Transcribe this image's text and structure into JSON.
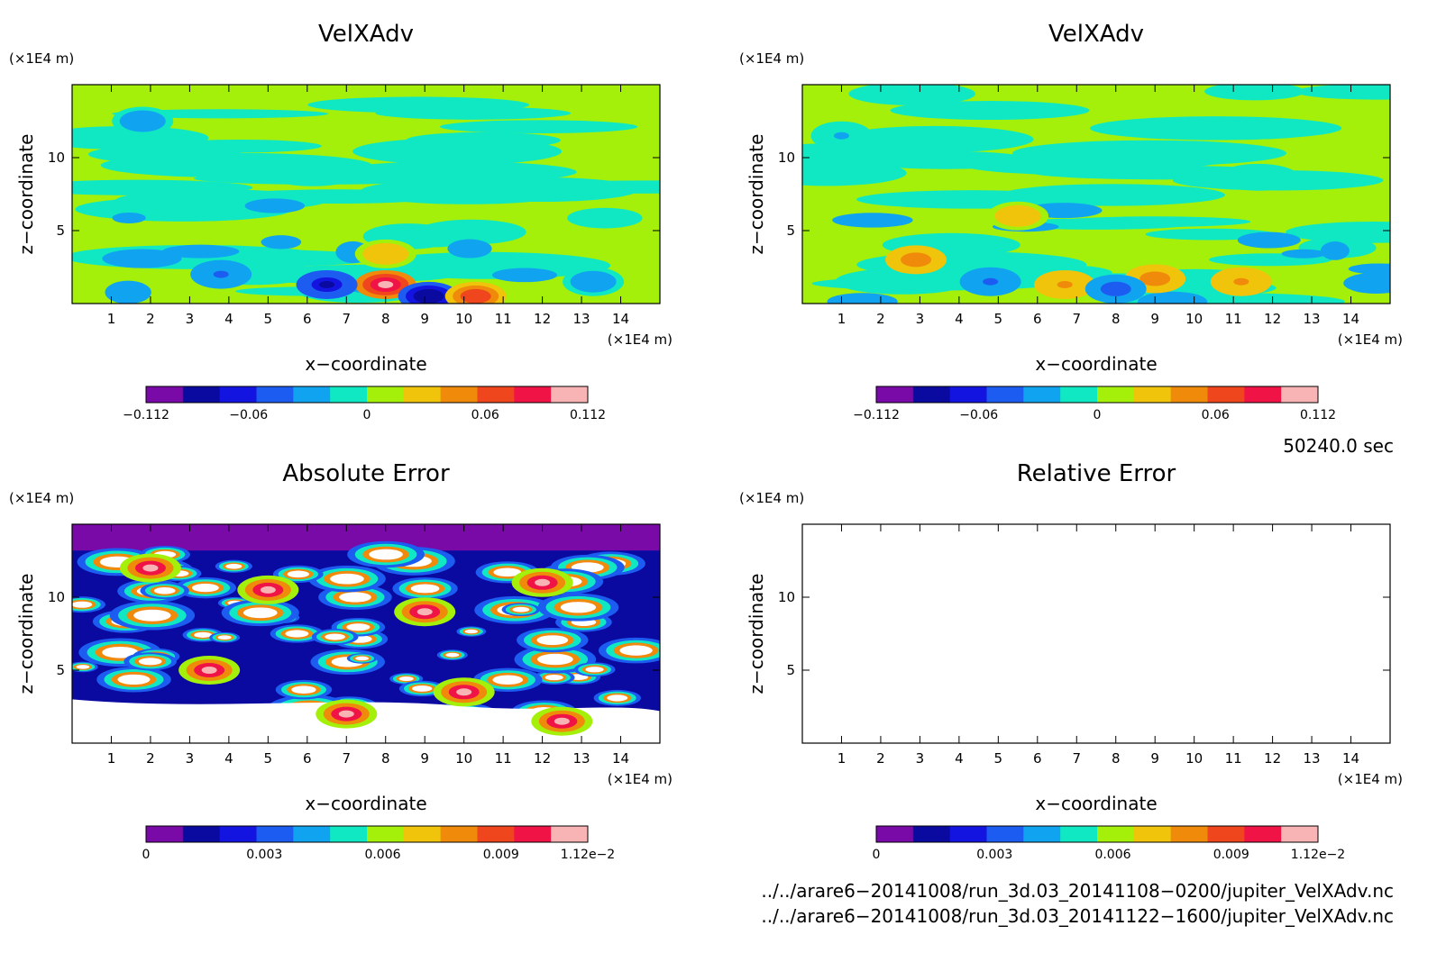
{
  "chart_data": [
    {
      "type": "heatmap",
      "title": "VelXAdv",
      "xlabel": "x−coordinate",
      "ylabel": "z−coordinate",
      "x_unit": "(×1E4 m)",
      "y_unit": "(×1E4 m)",
      "xlim": [
        0,
        15
      ],
      "ylim": [
        0,
        15
      ],
      "x_ticks": [
        "1",
        "2",
        "3",
        "4",
        "5",
        "6",
        "7",
        "8",
        "9",
        "10",
        "11",
        "12",
        "13",
        "14"
      ],
      "y_ticks": [
        "5",
        "10"
      ],
      "colorbar": {
        "min": -0.112,
        "max": 0.112,
        "labels": [
          "−0.112",
          "−0.06",
          "0",
          "0.06",
          "0.112"
        ],
        "label_values": [
          -0.112,
          -0.06,
          0,
          0.06,
          0.112
        ],
        "colors": [
          "#7a0aa8",
          "#0a0aa0",
          "#1414e0",
          "#1c5cf0",
          "#10a4f0",
          "#10e8c4",
          "#a4f00a",
          "#f0c40a",
          "#f08a0a",
          "#f0461e",
          "#f01446",
          "#f8b4b4"
        ]
      },
      "field_note": "background values near 0 (green/cyan) with strong ± anomalies near the bottom",
      "anomalies": [
        {
          "x": 8.0,
          "z": 1.3,
          "value": 0.1
        },
        {
          "x": 6.5,
          "z": 1.3,
          "value": -0.08
        },
        {
          "x": 9.1,
          "z": 0.5,
          "value": -0.09
        },
        {
          "x": 10.3,
          "z": 0.5,
          "value": 0.07
        },
        {
          "x": 3.8,
          "z": 2.0,
          "value": -0.04
        },
        {
          "x": 13.3,
          "z": 1.5,
          "value": -0.03
        },
        {
          "x": 8.0,
          "z": 3.4,
          "value": 0.03
        },
        {
          "x": 1.8,
          "z": 12.5,
          "value": -0.03
        }
      ]
    },
    {
      "type": "heatmap",
      "title": "VelXAdv",
      "xlabel": "x−coordinate",
      "ylabel": "z−coordinate",
      "x_unit": "(×1E4 m)",
      "y_unit": "(×1E4 m)",
      "xlim": [
        0,
        15
      ],
      "ylim": [
        0,
        15
      ],
      "x_ticks": [
        "1",
        "2",
        "3",
        "4",
        "5",
        "6",
        "7",
        "8",
        "9",
        "10",
        "11",
        "12",
        "13",
        "14"
      ],
      "y_ticks": [
        "5",
        "10"
      ],
      "colorbar": {
        "min": -0.112,
        "max": 0.112,
        "labels": [
          "−0.112",
          "−0.06",
          "0",
          "0.06",
          "0.112"
        ],
        "label_values": [
          -0.112,
          -0.06,
          0,
          0.06,
          0.112
        ],
        "colors": [
          "#7a0aa8",
          "#0a0aa0",
          "#1414e0",
          "#1c5cf0",
          "#10a4f0",
          "#10e8c4",
          "#a4f00a",
          "#f0c40a",
          "#f08a0a",
          "#f0461e",
          "#f01446",
          "#f8b4b4"
        ]
      },
      "anomalies": [
        {
          "x": 6.7,
          "z": 1.3,
          "value": 0.04
        },
        {
          "x": 9.0,
          "z": 1.7,
          "value": 0.05
        },
        {
          "x": 11.2,
          "z": 1.5,
          "value": 0.04
        },
        {
          "x": 8.0,
          "z": 1.0,
          "value": -0.05
        },
        {
          "x": 4.8,
          "z": 1.5,
          "value": -0.04
        },
        {
          "x": 2.9,
          "z": 3.0,
          "value": 0.05
        },
        {
          "x": 5.5,
          "z": 6.0,
          "value": 0.03
        },
        {
          "x": 1.0,
          "z": 11.5,
          "value": -0.02
        }
      ]
    },
    {
      "type": "heatmap",
      "title": "Absolute Error",
      "xlabel": "x−coordinate",
      "ylabel": "z−coordinate",
      "x_unit": "(×1E4 m)",
      "y_unit": "(×1E4 m)",
      "xlim": [
        0,
        15
      ],
      "ylim": [
        0,
        15
      ],
      "x_ticks": [
        "1",
        "2",
        "3",
        "4",
        "5",
        "6",
        "7",
        "8",
        "9",
        "10",
        "11",
        "12",
        "13",
        "14"
      ],
      "y_ticks": [
        "5",
        "10"
      ],
      "colorbar": {
        "min": 0,
        "max": 0.0112,
        "labels": [
          "0",
          "0.003",
          "0.006",
          "0.009",
          "1.12e−2"
        ],
        "label_values": [
          0,
          0.003,
          0.006,
          0.009,
          0.0112
        ],
        "colors": [
          "#7a0aa8",
          "#0a0aa0",
          "#1414e0",
          "#1c5cf0",
          "#10a4f0",
          "#10e8c4",
          "#a4f00a",
          "#f0c40a",
          "#f08a0a",
          "#f0461e",
          "#f01446",
          "#f8b4b4"
        ]
      },
      "field_note": "near-zero error in top layer; mixed values with white (out-of-range) regions below, largest near bottom",
      "anomalies": [
        {
          "x": 2.0,
          "z": 12.0,
          "value": 0.012
        },
        {
          "x": 5.0,
          "z": 10.5,
          "value": 0.012
        },
        {
          "x": 9.0,
          "z": 9.0,
          "value": 0.012
        },
        {
          "x": 12.0,
          "z": 11.0,
          "value": 0.012
        },
        {
          "x": 3.5,
          "z": 5.0,
          "value": 0.012
        },
        {
          "x": 10.0,
          "z": 3.5,
          "value": 0.012
        },
        {
          "x": 7.0,
          "z": 2.0,
          "value": 0.012
        },
        {
          "x": 12.5,
          "z": 1.5,
          "value": 0.012
        }
      ]
    },
    {
      "type": "heatmap",
      "title": "Relative Error",
      "xlabel": "x−coordinate",
      "ylabel": "z−coordinate",
      "x_unit": "(×1E4 m)",
      "y_unit": "(×1E4 m)",
      "xlim": [
        0,
        15
      ],
      "ylim": [
        0,
        15
      ],
      "x_ticks": [
        "1",
        "2",
        "3",
        "4",
        "5",
        "6",
        "7",
        "8",
        "9",
        "10",
        "11",
        "12",
        "13",
        "14"
      ],
      "y_ticks": [
        "5",
        "10"
      ],
      "colorbar": {
        "min": 0,
        "max": 0.0112,
        "labels": [
          "0",
          "0.003",
          "0.006",
          "0.009",
          "1.12e−2"
        ],
        "label_values": [
          0,
          0.003,
          0.006,
          0.009,
          0.0112
        ],
        "colors": [
          "#7a0aa8",
          "#0a0aa0",
          "#1414e0",
          "#1c5cf0",
          "#10a4f0",
          "#10e8c4",
          "#a4f00a",
          "#f0c40a",
          "#f08a0a",
          "#f0461e",
          "#f01446",
          "#f8b4b4"
        ]
      },
      "field_note": "empty (no contours drawn)",
      "anomalies": []
    }
  ],
  "time_label": "50240.0 sec",
  "file_paths": [
    "../../arare6−20141008/run_3d.03_20141108−0200/jupiter_VelXAdv.nc",
    "../../arare6−20141008/run_3d.03_20141122−1600/jupiter_VelXAdv.nc"
  ]
}
